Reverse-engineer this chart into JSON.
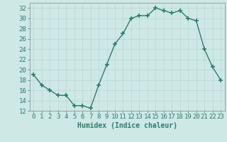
{
  "x": [
    0,
    1,
    2,
    3,
    4,
    5,
    6,
    7,
    8,
    9,
    10,
    11,
    12,
    13,
    14,
    15,
    16,
    17,
    18,
    19,
    20,
    21,
    22,
    23
  ],
  "y": [
    19,
    17,
    16,
    15,
    15,
    13,
    13,
    12.5,
    17,
    21,
    25,
    27,
    30,
    30.5,
    30.5,
    32,
    31.5,
    31,
    31.5,
    30,
    29.5,
    24,
    20.5,
    18
  ],
  "line_color": "#2e7d6e",
  "marker": "+",
  "marker_size": 4,
  "marker_lw": 1.2,
  "line_width": 1.0,
  "bg_color": "#cde8e5",
  "grid_color": "#b8d8d5",
  "xlabel": "Humidex (Indice chaleur)",
  "ylim": [
    12,
    33
  ],
  "xlim": [
    -0.5,
    23.5
  ],
  "yticks": [
    12,
    14,
    16,
    18,
    20,
    22,
    24,
    26,
    28,
    30,
    32
  ],
  "xticks": [
    0,
    1,
    2,
    3,
    4,
    5,
    6,
    7,
    8,
    9,
    10,
    11,
    12,
    13,
    14,
    15,
    16,
    17,
    18,
    19,
    20,
    21,
    22,
    23
  ],
  "xlabel_fontsize": 7,
  "tick_fontsize": 6.5
}
